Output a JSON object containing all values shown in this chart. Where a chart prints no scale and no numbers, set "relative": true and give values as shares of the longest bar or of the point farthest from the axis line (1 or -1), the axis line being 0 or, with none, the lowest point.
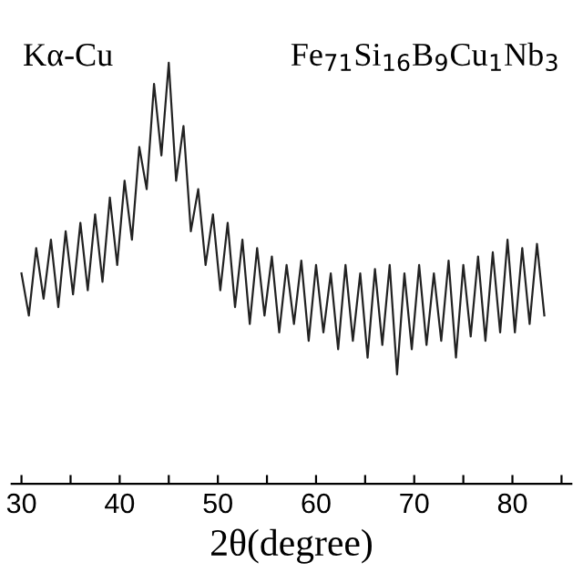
{
  "chart_data": {
    "type": "line",
    "relative": true,
    "xlabel": "2θ(degree)",
    "annotations": [
      "Kα-Cu",
      "Fe$_{71}$Si$_{16}$B$_{9}$Cu$_{1}$Nb$_{3}$"
    ],
    "xlim": [
      29,
      86
    ],
    "xticks": [
      30,
      {
        "value": 35,
        "label": null
      },
      40,
      {
        "value": 45,
        "label": null
      },
      50,
      {
        "value": 55,
        "label": null
      },
      60,
      {
        "value": 65,
        "label": null
      },
      70,
      {
        "value": 75,
        "label": null
      },
      80,
      {
        "value": 85,
        "label": null
      }
    ],
    "grid": false,
    "legend": false,
    "marker": "none",
    "line_style": "solid",
    "series": [
      {
        "color": "#222222",
        "x": [
          30,
          30.75,
          31.5,
          32.25,
          33,
          33.75,
          34.5,
          35.25,
          36,
          36.75,
          37.5,
          38.25,
          39,
          39.75,
          40.5,
          41.25,
          42,
          42.75,
          43.5,
          44.25,
          45,
          45.75,
          46.5,
          47.25,
          48,
          48.75,
          49.5,
          50.25,
          51,
          51.75,
          52.5,
          53.25,
          54,
          54.75,
          55.5,
          56.25,
          57,
          57.75,
          58.5,
          59.25,
          60,
          60.75,
          61.5,
          62.25,
          63,
          63.75,
          64.5,
          65.25,
          66,
          66.75,
          67.5,
          68.25,
          69,
          69.75,
          70.5,
          71.25,
          72,
          72.75,
          73.5,
          74.25,
          75,
          75.75,
          76.5,
          77.25,
          78,
          78.75,
          79.5,
          80.25,
          81,
          81.75,
          82.5,
          83.25
        ],
        "values": [
          0.5,
          0.4,
          0.56,
          0.44,
          0.58,
          0.42,
          0.6,
          0.45,
          0.62,
          0.46,
          0.64,
          0.48,
          0.68,
          0.52,
          0.72,
          0.58,
          0.8,
          0.7,
          0.95,
          0.78,
          1.0,
          0.72,
          0.85,
          0.6,
          0.7,
          0.52,
          0.64,
          0.46,
          0.62,
          0.42,
          0.58,
          0.38,
          0.56,
          0.4,
          0.54,
          0.36,
          0.52,
          0.38,
          0.53,
          0.34,
          0.52,
          0.36,
          0.5,
          0.32,
          0.52,
          0.34,
          0.5,
          0.3,
          0.51,
          0.33,
          0.52,
          0.26,
          0.5,
          0.32,
          0.52,
          0.33,
          0.5,
          0.34,
          0.53,
          0.3,
          0.52,
          0.35,
          0.54,
          0.34,
          0.55,
          0.36,
          0.58,
          0.36,
          0.56,
          0.38,
          0.57,
          0.4
        ]
      }
    ]
  }
}
